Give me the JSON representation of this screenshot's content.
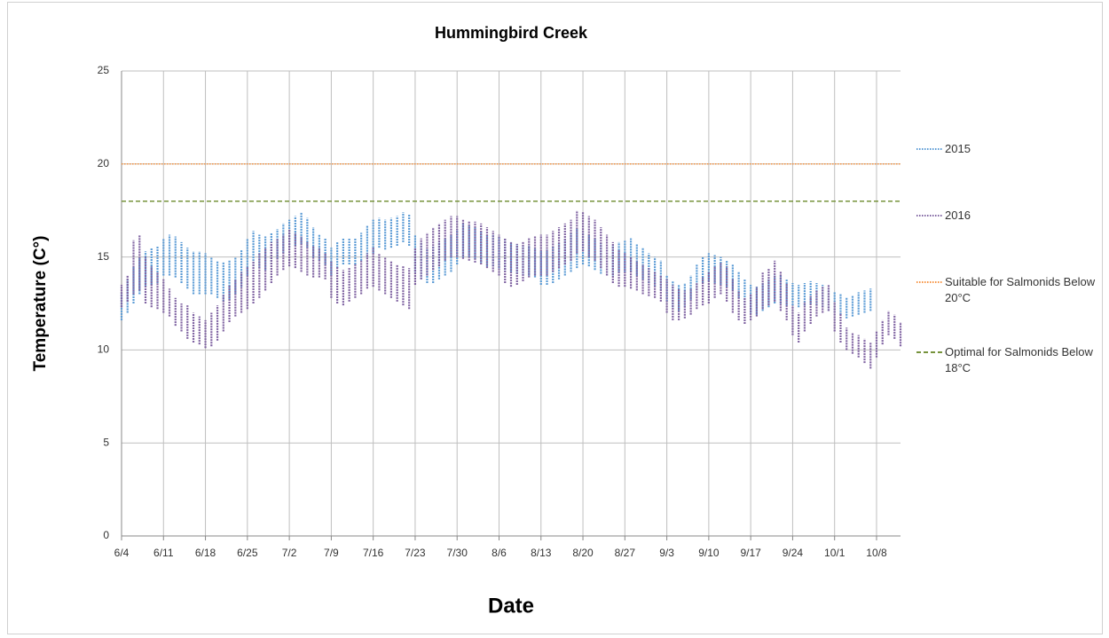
{
  "chart_data": {
    "type": "range",
    "title": "Hummingbird Creek",
    "x_label": "Date",
    "y_label": "Temperature (C°)",
    "categories": [
      "6/4",
      null,
      null,
      null,
      null,
      null,
      null,
      "6/11",
      null,
      null,
      null,
      null,
      null,
      null,
      "6/18",
      null,
      null,
      null,
      null,
      null,
      null,
      "6/25",
      null,
      null,
      null,
      null,
      null,
      null,
      "7/2",
      null,
      null,
      null,
      null,
      null,
      null,
      "7/9",
      null,
      null,
      null,
      null,
      null,
      null,
      "7/16",
      null,
      null,
      null,
      null,
      null,
      null,
      "7/23",
      null,
      null,
      null,
      null,
      null,
      null,
      "7/30",
      null,
      null,
      null,
      null,
      null,
      null,
      "8/6",
      null,
      null,
      null,
      null,
      null,
      null,
      "8/13",
      null,
      null,
      null,
      null,
      null,
      null,
      "8/20",
      null,
      null,
      null,
      null,
      null,
      null,
      "8/27",
      null,
      null,
      null,
      null,
      null,
      null,
      "9/3",
      null,
      null,
      null,
      null,
      null,
      null,
      "9/10",
      null,
      null,
      null,
      null,
      null,
      null,
      "9/17",
      null,
      null,
      null,
      null,
      null,
      null,
      "9/24",
      null,
      null,
      null,
      null,
      null,
      null,
      "10/1",
      null,
      null,
      null,
      null,
      null,
      null,
      "10/8",
      null,
      null,
      null,
      null
    ],
    "ylim": [
      0,
      25
    ],
    "yticks": [
      0,
      5,
      10,
      15,
      20,
      25
    ],
    "grid": true,
    "legend": "right",
    "series": [
      {
        "name": "2015",
        "color": "#5b9bd5",
        "high": [
          13.1,
          13.8,
          14.5,
          15,
          15.3,
          15.5,
          15.6,
          16,
          16.2,
          16.1,
          15.8,
          15.5,
          15.3,
          15.3,
          15.2,
          15,
          14.8,
          14.7,
          14.8,
          15,
          15.4,
          16,
          16.4,
          16.2,
          16.1,
          16.3,
          16.5,
          16.8,
          17,
          17.2,
          17.4,
          17.1,
          16.6,
          16.2,
          16,
          15.5,
          15.8,
          16,
          16,
          16,
          16.3,
          16.7,
          17,
          17.1,
          17,
          17.1,
          17.2,
          17.4,
          17.3,
          16.2,
          15.8,
          15.5,
          15.6,
          15.8,
          16,
          16.2,
          16.5,
          16.8,
          16.7,
          16.6,
          16.4,
          16.2,
          16.2,
          16.1,
          16,
          15.8,
          15.7,
          15.6,
          15.6,
          15.5,
          15.3,
          15.4,
          15.6,
          15.8,
          16,
          16.3,
          16.5,
          16.4,
          16.2,
          16,
          15.8,
          15.6,
          15.6,
          15.8,
          15.9,
          16,
          15.7,
          15.5,
          15.2,
          15,
          14.8,
          14,
          13.7,
          13.5,
          13.6,
          14,
          14.6,
          15,
          15.2,
          15.1,
          15,
          14.8,
          14.6,
          14.2,
          13.8,
          13.5,
          13.4,
          13.6,
          13.8,
          14,
          14,
          13.8,
          13.6,
          13.5,
          13.6,
          13.7,
          13.6,
          13.5,
          13.3,
          13.1,
          13,
          12.8,
          12.9,
          13.1,
          13.2,
          13.3,
          null,
          null,
          null,
          null,
          null
        ],
        "low": [
          11.6,
          12,
          12.5,
          13,
          13.4,
          13.5,
          13.6,
          14,
          14,
          13.9,
          13.6,
          13.3,
          13,
          13,
          13,
          13,
          12.8,
          12.6,
          12.7,
          13,
          13.4,
          14,
          14.5,
          14.4,
          14.3,
          14.6,
          14.9,
          15.2,
          15.5,
          15.6,
          15.7,
          15.5,
          15,
          14.8,
          14.6,
          14,
          14.4,
          14.6,
          14.6,
          14.6,
          14.8,
          15,
          15.2,
          15.5,
          15.4,
          15.5,
          15.6,
          15.8,
          15.6,
          14.2,
          13.8,
          13.6,
          13.6,
          13.8,
          14,
          14.2,
          14.6,
          15,
          15,
          14.9,
          14.7,
          14.5,
          14.5,
          14.4,
          14.3,
          14.2,
          14.1,
          14,
          14,
          13.9,
          13.5,
          13.5,
          13.6,
          13.8,
          14,
          14.2,
          14.4,
          14.6,
          14.5,
          14.3,
          14.1,
          14,
          14,
          14.2,
          14.2,
          14.2,
          14,
          13.8,
          13.6,
          13.4,
          13.2,
          12.6,
          12.3,
          12.1,
          12.3,
          12.7,
          13.2,
          13.6,
          13.7,
          13.6,
          13.5,
          13.4,
          13.2,
          12.8,
          12.4,
          12,
          11.9,
          12.1,
          12.3,
          12.5,
          12.5,
          12.4,
          12.4,
          12.3,
          12.4,
          12.5,
          12.4,
          12.3,
          12.1,
          12,
          11.9,
          11.7,
          11.8,
          11.9,
          12,
          12.1,
          null,
          null,
          null,
          null,
          null
        ]
      },
      {
        "name": "2016",
        "color": "#8064a2",
        "high": [
          13.5,
          14,
          15.9,
          16.2,
          15,
          14.5,
          14.2,
          13.8,
          13.3,
          12.8,
          12.5,
          12.4,
          12,
          11.8,
          11.6,
          12,
          12.4,
          13,
          13.5,
          13.8,
          14.2,
          14.5,
          14.8,
          15.2,
          15.5,
          15.8,
          16,
          16.2,
          16.5,
          16.3,
          16.1,
          15.8,
          15.6,
          15.5,
          15.2,
          14.8,
          14.5,
          14.3,
          14.4,
          14.6,
          14.8,
          15.2,
          15.5,
          15.2,
          15,
          14.8,
          14.6,
          14.5,
          14.4,
          15.5,
          16,
          16.3,
          16.6,
          16.8,
          17,
          17.2,
          17.2,
          17,
          16.9,
          16.9,
          16.8,
          16.6,
          16.4,
          16.2,
          16,
          15.8,
          15.7,
          15.8,
          16,
          16.1,
          16.2,
          16.2,
          16.4,
          16.6,
          16.8,
          17,
          17.5,
          17.4,
          17.2,
          17,
          16.6,
          16.2,
          15.8,
          15.4,
          15.2,
          15,
          14.8,
          14.6,
          14.4,
          14.2,
          14,
          13.8,
          13.5,
          13.3,
          13.2,
          13.3,
          13.6,
          13.9,
          14.2,
          14.5,
          14.7,
          14.5,
          13.8,
          13.2,
          12.8,
          13,
          13.4,
          14.2,
          14.4,
          14.8,
          14.2,
          13.6,
          12.4,
          12,
          12.6,
          12.9,
          13.2,
          13.4,
          13.5,
          12.6,
          12,
          11.2,
          10.9,
          10.8,
          10.6,
          10.4,
          11,
          11.6,
          12.1,
          11.9,
          11.5
        ],
        "low": [
          12.3,
          12.6,
          13,
          13.2,
          12.5,
          12.3,
          12.2,
          12,
          11.8,
          11.3,
          11,
          10.6,
          10.4,
          10.3,
          10.1,
          10.2,
          10.5,
          11,
          11.5,
          11.8,
          12,
          12.2,
          12.5,
          12.8,
          13.2,
          13.6,
          14,
          14.3,
          14.5,
          14.4,
          14.2,
          14,
          13.9,
          13.9,
          13.8,
          12.8,
          12.5,
          12.4,
          12.6,
          12.8,
          13,
          13.3,
          13.4,
          13.2,
          13,
          12.8,
          12.6,
          12.4,
          12.2,
          13.5,
          13.8,
          14,
          14.3,
          14.5,
          14.8,
          15,
          15,
          14.9,
          14.8,
          14.7,
          14.6,
          14.4,
          14.2,
          14,
          13.6,
          13.4,
          13.5,
          13.7,
          13.9,
          14,
          14,
          14,
          14.2,
          14.4,
          14.6,
          14.8,
          15.2,
          15.3,
          15,
          14.8,
          14.4,
          14,
          13.6,
          13.4,
          13.4,
          13.3,
          13.2,
          13,
          12.9,
          12.8,
          12.6,
          12,
          11.6,
          11.6,
          11.7,
          11.9,
          12.2,
          12.4,
          12.5,
          12.8,
          13,
          12.6,
          12,
          11.6,
          11.4,
          11.6,
          11.8,
          12.2,
          12.4,
          12.6,
          12.1,
          11.6,
          10.8,
          10.4,
          11,
          11.4,
          11.8,
          12,
          12.1,
          11,
          10.4,
          10,
          9.8,
          9.6,
          9.3,
          9,
          9.6,
          10.3,
          10.8,
          10.6,
          10.2
        ]
      }
    ],
    "reference_lines": [
      {
        "name": "Suitable for Salmonids Below 20°C",
        "value": 20,
        "color": "#f79646",
        "style": "dotted"
      },
      {
        "name": "Optimal for Salmonids Below 18°C",
        "value": 18,
        "color": "#77933c",
        "style": "dashed"
      }
    ]
  }
}
